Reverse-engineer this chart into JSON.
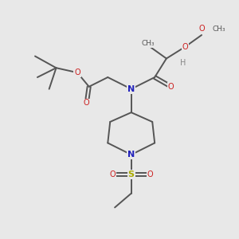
{
  "bg_color": "#e8e8e8",
  "bond_color": "#555555",
  "N_color": "#2222bb",
  "O_color": "#cc2020",
  "S_color": "#aaaa00",
  "H_color": "#888888",
  "figsize": [
    3.0,
    3.0
  ],
  "dpi": 100,
  "xlim": [
    0,
    10
  ],
  "ylim": [
    0,
    10
  ]
}
